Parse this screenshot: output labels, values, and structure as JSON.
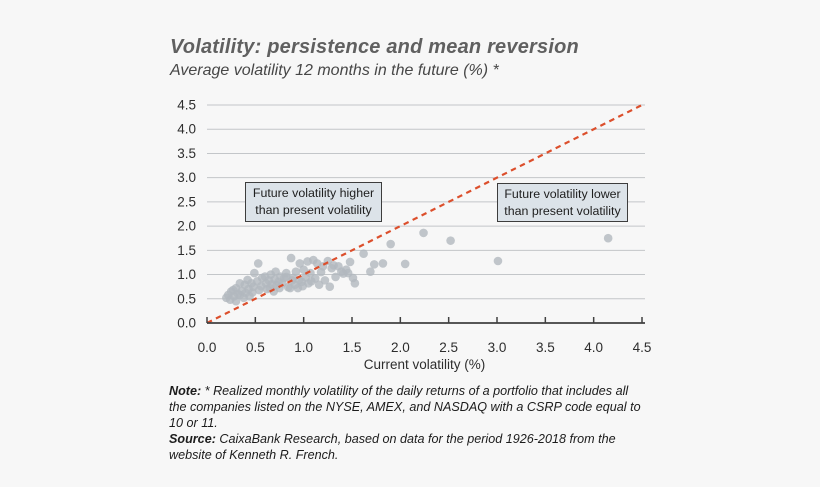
{
  "page": {
    "background": "#f7f7f7"
  },
  "chart_data": {
    "type": "scatter",
    "title": "Volatility: persistence and mean reversion",
    "subtitle": "Average volatility 12 months in the future (%) *",
    "xlabel": "Current volatility (%)",
    "ylabel": "",
    "xlim": [
      0,
      4.5
    ],
    "ylim": [
      0,
      4.5
    ],
    "x_ticks": [
      "0.0",
      "0.5",
      "1.0",
      "1.5",
      "2.0",
      "2.5",
      "3.0",
      "3.5",
      "4.0",
      "4.5"
    ],
    "y_ticks": [
      "0.0",
      "0.5",
      "1.0",
      "1.5",
      "2.0",
      "2.5",
      "3.0",
      "3.5",
      "4.0",
      "4.5"
    ],
    "grid": "horizontal",
    "legend": "none",
    "point_color": "#b1b8be",
    "gridline_color": "#c3c6c9",
    "axis_color": "#404040",
    "reference_line": {
      "style": "dashed",
      "color": "#dc4f2c",
      "from": [
        0,
        0
      ],
      "to": [
        4.5,
        4.5
      ]
    },
    "annotations": [
      {
        "text": "Future volatility higher than present volatility"
      },
      {
        "text": "Future volatility lower than present volatility"
      }
    ],
    "points": [
      [
        0.2,
        0.52
      ],
      [
        0.22,
        0.58
      ],
      [
        0.24,
        0.48
      ],
      [
        0.25,
        0.65
      ],
      [
        0.27,
        0.68
      ],
      [
        0.28,
        0.55
      ],
      [
        0.3,
        0.45
      ],
      [
        0.3,
        0.72
      ],
      [
        0.32,
        0.6
      ],
      [
        0.34,
        0.82
      ],
      [
        0.34,
        0.58
      ],
      [
        0.36,
        0.66
      ],
      [
        0.38,
        0.52
      ],
      [
        0.39,
        0.79
      ],
      [
        0.4,
        0.62
      ],
      [
        0.42,
        0.89
      ],
      [
        0.43,
        0.7
      ],
      [
        0.44,
        0.55
      ],
      [
        0.46,
        0.82
      ],
      [
        0.47,
        0.63
      ],
      [
        0.48,
        0.75
      ],
      [
        0.49,
        1.03
      ],
      [
        0.52,
        0.86
      ],
      [
        0.53,
        1.23
      ],
      [
        0.54,
        0.68
      ],
      [
        0.56,
        0.76
      ],
      [
        0.57,
        0.93
      ],
      [
        0.6,
        0.96
      ],
      [
        0.61,
        0.82
      ],
      [
        0.62,
        0.7
      ],
      [
        0.64,
        0.88
      ],
      [
        0.65,
        0.72
      ],
      [
        0.66,
        1.0
      ],
      [
        0.67,
        0.8
      ],
      [
        0.69,
        0.65
      ],
      [
        0.7,
        0.9
      ],
      [
        0.71,
        1.06
      ],
      [
        0.72,
        0.78
      ],
      [
        0.74,
        0.85
      ],
      [
        0.75,
        0.72
      ],
      [
        0.76,
        0.96
      ],
      [
        0.78,
        0.82
      ],
      [
        0.8,
        0.93
      ],
      [
        0.82,
        1.03
      ],
      [
        0.82,
        0.95
      ],
      [
        0.84,
        0.74
      ],
      [
        0.86,
        0.72
      ],
      [
        0.87,
        1.34
      ],
      [
        0.88,
        0.88
      ],
      [
        0.89,
        0.93
      ],
      [
        0.91,
        0.79
      ],
      [
        0.92,
        1.06
      ],
      [
        0.94,
        0.72
      ],
      [
        0.95,
        0.89
      ],
      [
        0.96,
        1.23
      ],
      [
        0.98,
        0.85
      ],
      [
        0.99,
        0.76
      ],
      [
        1.0,
        1.1
      ],
      [
        1.02,
        0.94
      ],
      [
        1.04,
        1.27
      ],
      [
        1.05,
        0.82
      ],
      [
        1.07,
        1.03
      ],
      [
        1.08,
        0.86
      ],
      [
        1.1,
        1.3
      ],
      [
        1.12,
        0.92
      ],
      [
        1.14,
        1.23
      ],
      [
        1.16,
        0.79
      ],
      [
        1.18,
        1.05
      ],
      [
        1.2,
        1.17
      ],
      [
        1.22,
        0.88
      ],
      [
        1.25,
        1.28
      ],
      [
        1.27,
        0.75
      ],
      [
        1.29,
        1.13
      ],
      [
        1.31,
        1.19
      ],
      [
        1.33,
        0.95
      ],
      [
        1.36,
        1.17
      ],
      [
        1.39,
        1.06
      ],
      [
        1.41,
        1.02
      ],
      [
        1.44,
        1.1
      ],
      [
        1.46,
        1.03
      ],
      [
        1.48,
        1.26
      ],
      [
        1.51,
        0.93
      ],
      [
        1.53,
        0.82
      ],
      [
        1.62,
        1.43
      ],
      [
        1.69,
        1.06
      ],
      [
        1.73,
        1.21
      ],
      [
        1.82,
        1.23
      ],
      [
        1.9,
        1.63
      ],
      [
        2.05,
        1.22
      ],
      [
        2.24,
        1.86
      ],
      [
        2.52,
        1.7
      ],
      [
        3.01,
        1.28
      ],
      [
        4.15,
        1.75
      ]
    ]
  },
  "footnote": {
    "note_label": "Note:",
    "note_text": " * Realized monthly volatility of the daily returns of a portfolio that includes all the companies listed on the NYSE, AMEX, and NASDAQ with a CSRP code equal to 10 or 11.",
    "source_label": "Source:",
    "source_text": " CaixaBank Research, based on data for the period 1926-2018 from the website of Kenneth R. French."
  }
}
